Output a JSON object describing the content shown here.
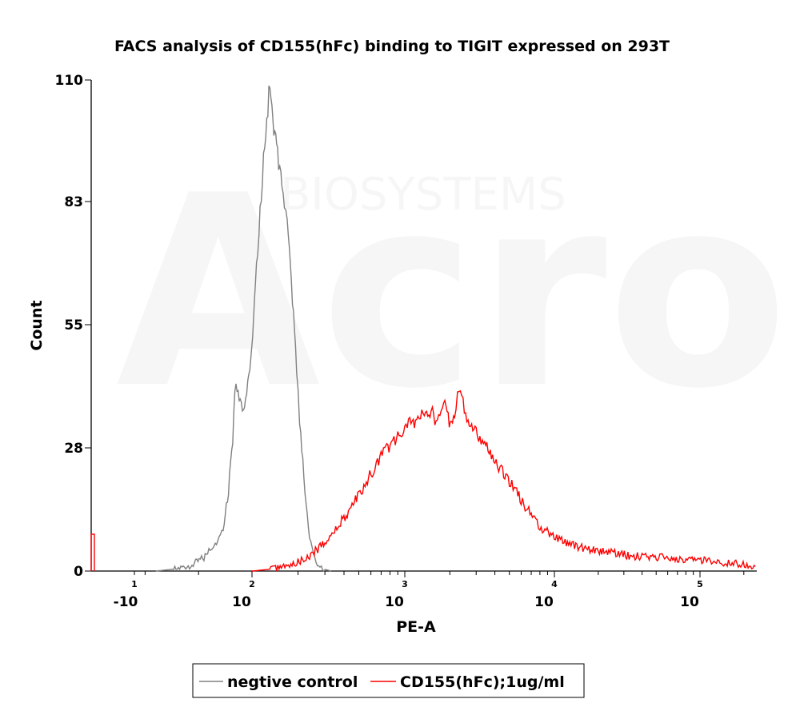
{
  "chart_data": {
    "type": "line",
    "title": "FACS analysis of CD155(hFc) binding to TIGIT expressed on 293T",
    "xlabel": "PE-A",
    "ylabel": "Count",
    "xscale": "biexponential",
    "ylim": [
      0,
      110
    ],
    "y_ticks": [
      "0",
      "28",
      "55",
      "83",
      "110"
    ],
    "x_ticks": [
      {
        "base": "-10",
        "exp": "1",
        "value": -10
      },
      {
        "base": "10",
        "exp": "2",
        "value": 100
      },
      {
        "base": "10",
        "exp": "3",
        "value": 1000
      },
      {
        "base": "10",
        "exp": "4",
        "value": 10000
      },
      {
        "base": "10",
        "exp": "5",
        "value": 100000
      }
    ],
    "watermark": {
      "big": "Acro",
      "small": "BIOSYSTEMS"
    },
    "legend_position": "bottom-center",
    "series": [
      {
        "name": "negtive control",
        "color": "#808080",
        "points": [
          [
            10,
            0
          ],
          [
            30,
            0.5
          ],
          [
            45,
            1.5
          ],
          [
            55,
            3
          ],
          [
            62,
            5
          ],
          [
            68,
            7
          ],
          [
            73,
            10
          ],
          [
            76,
            14
          ],
          [
            78,
            18
          ],
          [
            80,
            24
          ],
          [
            82,
            30
          ],
          [
            83,
            35
          ],
          [
            84,
            39
          ],
          [
            85,
            42
          ],
          [
            87,
            40
          ],
          [
            89,
            37
          ],
          [
            92,
            36
          ],
          [
            95,
            40
          ],
          [
            98,
            46
          ],
          [
            101,
            53
          ],
          [
            104,
            60
          ],
          [
            107,
            68
          ],
          [
            111,
            76
          ],
          [
            115,
            84
          ],
          [
            119,
            92
          ],
          [
            123,
            98
          ],
          [
            127,
            104
          ],
          [
            131,
            110
          ],
          [
            135,
            104
          ],
          [
            139,
            97
          ],
          [
            143,
            96
          ],
          [
            147,
            94
          ],
          [
            152,
            90
          ],
          [
            157,
            87
          ],
          [
            163,
            83
          ],
          [
            170,
            77
          ],
          [
            178,
            68
          ],
          [
            187,
            57
          ],
          [
            196,
            45
          ],
          [
            205,
            34
          ],
          [
            215,
            24
          ],
          [
            226,
            15
          ],
          [
            238,
            8
          ],
          [
            252,
            4
          ],
          [
            268,
            1.5
          ],
          [
            290,
            0.5
          ],
          [
            330,
            0
          ]
        ]
      },
      {
        "name": "CD155(hFc);1ug/ml",
        "color": "#ff0000",
        "points": [
          [
            100,
            0
          ],
          [
            140,
            0.5
          ],
          [
            170,
            1
          ],
          [
            200,
            2
          ],
          [
            230,
            3
          ],
          [
            260,
            4.5
          ],
          [
            300,
            6.5
          ],
          [
            340,
            8.5
          ],
          [
            380,
            11
          ],
          [
            420,
            13
          ],
          [
            460,
            15
          ],
          [
            500,
            17
          ],
          [
            550,
            19
          ],
          [
            600,
            22
          ],
          [
            650,
            24
          ],
          [
            700,
            26
          ],
          [
            750,
            27
          ],
          [
            800,
            28
          ],
          [
            850,
            29
          ],
          [
            900,
            30
          ],
          [
            950,
            31
          ],
          [
            1000,
            32
          ],
          [
            1100,
            33
          ],
          [
            1200,
            34
          ],
          [
            1350,
            35
          ],
          [
            1500,
            36
          ],
          [
            1650,
            33
          ],
          [
            1750,
            37
          ],
          [
            1850,
            39
          ],
          [
            1950,
            34
          ],
          [
            2050,
            33
          ],
          [
            2150,
            35
          ],
          [
            2250,
            40
          ],
          [
            2350,
            41
          ],
          [
            2450,
            38
          ],
          [
            2600,
            35
          ],
          [
            2800,
            33
          ],
          [
            3000,
            31
          ],
          [
            3300,
            29
          ],
          [
            3600,
            27
          ],
          [
            4000,
            24
          ],
          [
            4500,
            22
          ],
          [
            5000,
            20
          ],
          [
            5500,
            18
          ],
          [
            6000,
            16
          ],
          [
            6500,
            14
          ],
          [
            7000,
            12.5
          ],
          [
            7500,
            11
          ],
          [
            8000,
            10
          ],
          [
            8800,
            9
          ],
          [
            9600,
            8
          ],
          [
            11000,
            7
          ],
          [
            13000,
            6
          ],
          [
            16000,
            5
          ],
          [
            20000,
            4.5
          ],
          [
            25000,
            4
          ],
          [
            32000,
            3.5
          ],
          [
            40000,
            3.2
          ],
          [
            55000,
            3
          ],
          [
            70000,
            2.8
          ],
          [
            90000,
            2.5
          ],
          [
            120000,
            2.2
          ],
          [
            160000,
            1.8
          ],
          [
            210000,
            1.5
          ],
          [
            240000,
            1
          ]
        ]
      }
    ]
  }
}
